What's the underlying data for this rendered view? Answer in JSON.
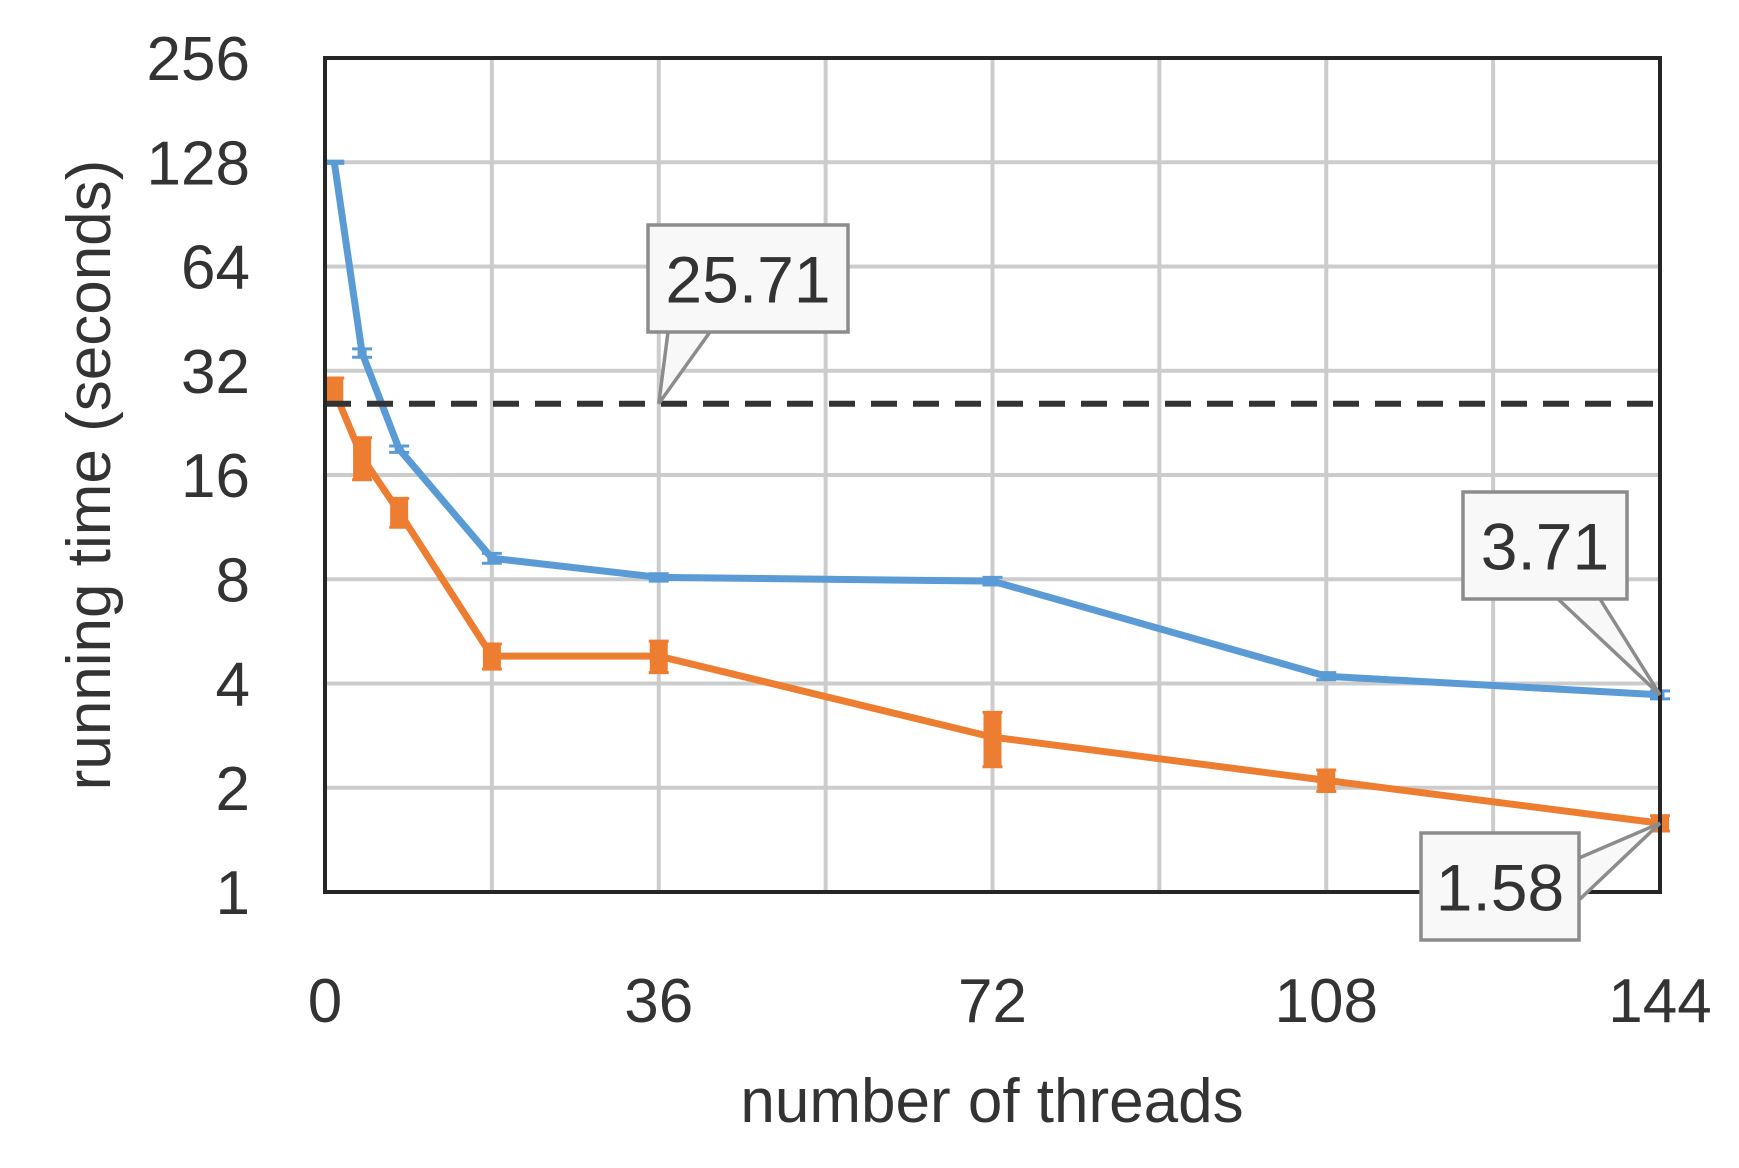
{
  "chart_data": {
    "type": "line",
    "title": "",
    "xlabel": "number of threads",
    "ylabel": "running time (seconds)",
    "xlim": [
      0,
      144
    ],
    "ylim": [
      1,
      256
    ],
    "y_scale": "log2",
    "x_ticks": [
      0,
      36,
      72,
      108,
      144
    ],
    "y_ticks": [
      1,
      2,
      4,
      8,
      16,
      32,
      64,
      128,
      256
    ],
    "x_tick_labels": [
      "0",
      "36",
      "72",
      "108",
      "144"
    ],
    "y_tick_labels": [
      "1",
      "2",
      "4",
      "8",
      "16",
      "32",
      "64",
      "128",
      "256"
    ],
    "grid": true,
    "series": [
      {
        "color": "#5B9BD5",
        "style": "solid",
        "x": [
          1,
          4,
          8,
          18,
          36,
          72,
          108,
          144
        ],
        "y": [
          128,
          36,
          19,
          9.2,
          8.1,
          7.9,
          4.2,
          3.71
        ],
        "err": [
          1,
          1,
          0.4,
          0.3,
          0.2,
          0.2,
          0.1,
          0.1
        ]
      },
      {
        "color": "#ED7D31",
        "style": "solid",
        "x": [
          1,
          4,
          8,
          18,
          36,
          72,
          108,
          144
        ],
        "y": [
          28,
          18,
          12.5,
          4.8,
          4.8,
          2.8,
          2.1,
          1.58
        ],
        "err": [
          2.5,
          2.5,
          1.2,
          0.4,
          0.5,
          0.5,
          0.15,
          0.08
        ]
      },
      {
        "color": "#333333",
        "style": "dashed",
        "x": [
          0,
          144
        ],
        "y": [
          25.71,
          25.71
        ]
      }
    ],
    "annotations": [
      {
        "text": "25.71",
        "x": 36,
        "y": 25.71
      },
      {
        "text": "3.71",
        "x": 144,
        "y": 3.71
      },
      {
        "text": "1.58",
        "x": 144,
        "y": 1.58
      }
    ]
  }
}
